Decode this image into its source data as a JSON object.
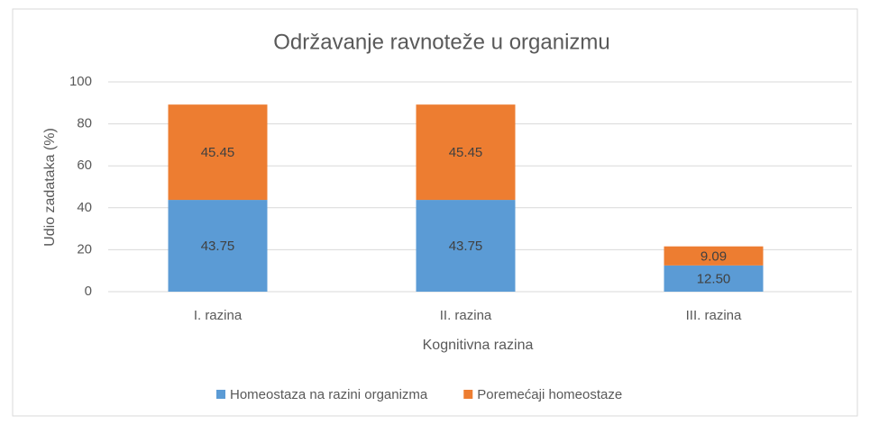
{
  "chart_data": {
    "type": "stacked_bar",
    "title": "Održavanje ravnoteže u organizmu",
    "xlabel": "Kognitivna razina",
    "ylabel": "Udio zadataka (%)",
    "categories": [
      "I. razina",
      "II. razina",
      "III. razina"
    ],
    "series": [
      {
        "name": "Homeostaza na razini organizma",
        "color": "#5b9bd5",
        "values": [
          43.75,
          43.75,
          12.5
        ],
        "value_labels": [
          "43.75",
          "43.75",
          "12.50"
        ]
      },
      {
        "name": "Poremećaji homeostaze",
        "color": "#ed7d31",
        "values": [
          45.45,
          45.45,
          9.09
        ]
      }
    ],
    "ylim": [
      0,
      100
    ],
    "yticks": [
      0,
      20,
      40,
      60,
      80,
      100
    ],
    "grid": true,
    "legend": "bottom"
  }
}
